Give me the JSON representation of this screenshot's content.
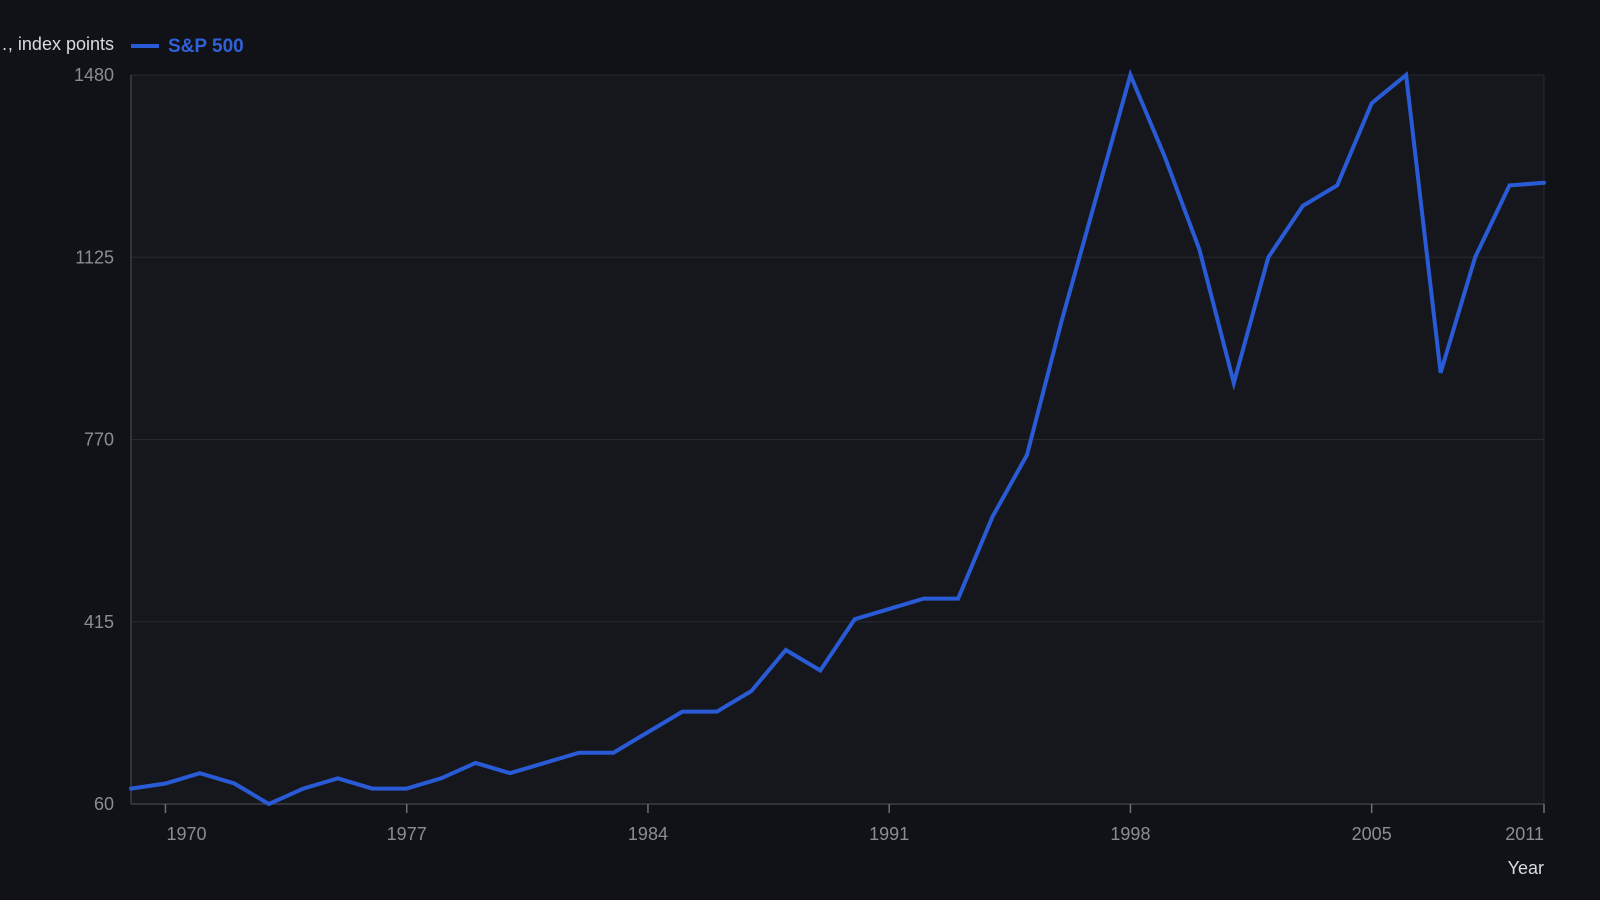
{
  "chart_data": {
    "type": "line",
    "xlabel": "Year",
    "ylabel": "…, index points",
    "x_ticks": [
      1970,
      1977,
      1984,
      1991,
      1998,
      2005,
      2011
    ],
    "y_ticks": [
      60,
      415,
      770,
      1125,
      1480
    ],
    "xlim": [
      1969,
      2010
    ],
    "ylim": [
      60,
      1480
    ],
    "grid": true,
    "legend_placement": "top-left",
    "series": [
      {
        "name": "S&P 500",
        "color": "#2a5bd7",
        "x": [
          1969,
          1970,
          1971,
          1972,
          1973,
          1974,
          1975,
          1976,
          1977,
          1978,
          1979,
          1980,
          1981,
          1982,
          1983,
          1984,
          1985,
          1986,
          1987,
          1988,
          1989,
          1990,
          1991,
          1992,
          1993,
          1994,
          1995,
          1996,
          1997,
          1998,
          1999,
          2000,
          2001,
          2002,
          2003,
          2004,
          2005,
          2006,
          2007,
          2008,
          2009,
          2010
        ],
        "y": [
          90,
          100,
          120,
          100,
          60,
          90,
          110,
          90,
          90,
          110,
          140,
          120,
          140,
          160,
          160,
          200,
          240,
          240,
          280,
          360,
          320,
          420,
          440,
          460,
          460,
          620,
          740,
          1000,
          1240,
          1480,
          1320,
          1140,
          880,
          1125,
          1225,
          1265,
          1425,
          1480,
          900,
          1125,
          1265,
          1270
        ]
      }
    ]
  }
}
